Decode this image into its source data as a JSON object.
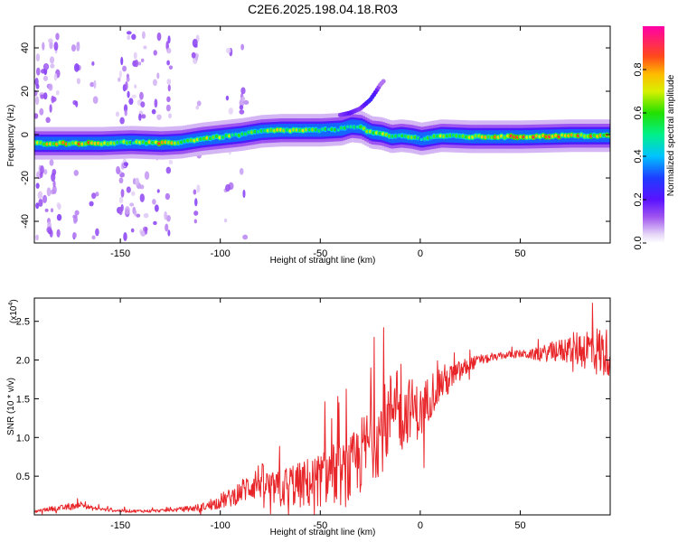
{
  "title": "C2E6.2025.198.04.18.R03",
  "colors": {
    "snr_line": "#e8262a",
    "spectrogram_background": "#ffffff",
    "axis": "#000000"
  },
  "chart_data": [
    {
      "type": "heatmap",
      "name": "spectrogram",
      "xlabel": "Height of straight line (km)",
      "ylabel": "Frequency (Hz)",
      "xlim": [
        -193,
        95
      ],
      "ylim": [
        -50,
        50
      ],
      "xticks": [
        -150,
        -100,
        -50,
        0,
        50
      ],
      "xtick_labels": [
        "-150",
        "-100",
        "-50",
        "0",
        "50"
      ],
      "yticks": [
        -40,
        -20,
        0,
        20,
        40
      ],
      "ytick_labels": [
        "-40",
        "-20",
        "0",
        "20",
        "40"
      ],
      "colorbar": {
        "label": "Normalized spectral amplitude",
        "range": [
          0,
          1
        ],
        "ticks": [
          0.0,
          0.2,
          0.4,
          0.6,
          0.8
        ],
        "tick_labels": [
          "0.0",
          "0.2",
          "0.4",
          "0.6",
          "0.8"
        ],
        "colormap": "rainbow (white-violet-blue-cyan-green-yellow-red-magenta)"
      },
      "ridge": {
        "x": [
          -190,
          -175,
          -160,
          -145,
          -130,
          -120,
          -110,
          -100,
          -90,
          -80,
          -70,
          -60,
          -50,
          -40,
          -35,
          -30,
          -25,
          -20,
          -15,
          -10,
          -5,
          0,
          10,
          25,
          50,
          75,
          95
        ],
        "freq": [
          -4,
          -4,
          -4,
          -3.5,
          -4,
          -3.5,
          -2,
          -1,
          0,
          1.5,
          2,
          2,
          2,
          2.5,
          4,
          3.5,
          1,
          0.5,
          -1,
          -0.5,
          -1,
          -2,
          -0.5,
          -1,
          -1,
          -0.5,
          -0.5
        ],
        "peak_amplitude": [
          0.8,
          0.85,
          0.85,
          0.6,
          0.85,
          0.7,
          0.75,
          0.7,
          0.65,
          0.7,
          0.75,
          0.7,
          0.65,
          0.55,
          0.6,
          0.6,
          0.8,
          0.7,
          0.65,
          0.6,
          0.65,
          0.6,
          0.7,
          0.75,
          0.9,
          0.9,
          0.75
        ]
      },
      "rising_branch": {
        "x": [
          -40,
          -35,
          -30,
          -25,
          -22,
          -20,
          -18
        ],
        "freq": [
          9,
          10,
          12,
          16,
          20,
          23,
          25
        ],
        "peak_amplitude": [
          0.15,
          0.2,
          0.15,
          0.25,
          0.2,
          0.1,
          0.1
        ]
      }
    },
    {
      "type": "line",
      "name": "snr",
      "xlabel": "Height of straight line (km)",
      "ylabel": "SNR (10 * v/v)",
      "y_multiplier_label": "(x10",
      "y_multiplier_exponent": "4",
      "y_multiplier_close": ")",
      "xlim": [
        -193,
        95
      ],
      "ylim": [
        0,
        2.8
      ],
      "y_unit_scale": "x10^4",
      "xticks": [
        -150,
        -100,
        -50,
        0,
        50
      ],
      "xtick_labels": [
        "-150",
        "-100",
        "-50",
        "0",
        "50"
      ],
      "yticks": [
        0.5,
        1.0,
        1.5,
        2.0,
        2.5
      ],
      "ytick_labels": [
        "0.5",
        "1.0",
        "1.5",
        "2.0",
        "2.5"
      ],
      "series": [
        {
          "x": [
            -193,
            -185,
            -175,
            -170,
            -165,
            -155,
            -145,
            -135,
            -125,
            -115,
            -105,
            -100,
            -95,
            -90,
            -85,
            -80,
            -75,
            -70,
            -65,
            -60,
            -55,
            -50,
            -45,
            -40,
            -35,
            -30,
            -25,
            -20,
            -15,
            -12,
            -10,
            -5,
            0,
            5,
            10,
            15,
            20,
            25,
            30,
            35,
            40,
            45,
            50,
            55,
            60,
            65,
            70,
            75,
            80,
            85,
            90,
            95
          ],
          "values": [
            0.04,
            0.08,
            0.1,
            0.14,
            0.09,
            0.06,
            0.05,
            0.05,
            0.06,
            0.08,
            0.12,
            0.18,
            0.22,
            0.3,
            0.38,
            0.45,
            0.35,
            0.32,
            0.4,
            0.38,
            0.42,
            0.45,
            0.55,
            0.5,
            0.55,
            0.75,
            0.95,
            1.05,
            1.3,
            1.7,
            1.2,
            1.4,
            1.3,
            1.55,
            1.7,
            1.75,
            1.85,
            1.95,
            2.0,
            2.02,
            2.05,
            2.07,
            2.08,
            2.07,
            2.08,
            2.1,
            2.12,
            2.14,
            2.15,
            2.15,
            2.1,
            2.1
          ],
          "noise_amplitude": [
            0.02,
            0.03,
            0.04,
            0.04,
            0.03,
            0.02,
            0.02,
            0.02,
            0.02,
            0.04,
            0.06,
            0.1,
            0.12,
            0.15,
            0.2,
            0.25,
            0.2,
            0.25,
            0.3,
            0.3,
            0.35,
            0.35,
            0.4,
            0.4,
            0.45,
            0.5,
            0.5,
            0.55,
            0.55,
            0.5,
            0.45,
            0.4,
            0.35,
            0.3,
            0.25,
            0.2,
            0.15,
            0.1,
            0.06,
            0.05,
            0.04,
            0.05,
            0.05,
            0.06,
            0.1,
            0.12,
            0.15,
            0.2,
            0.25,
            0.3,
            0.35,
            0.3
          ]
        }
      ]
    }
  ]
}
